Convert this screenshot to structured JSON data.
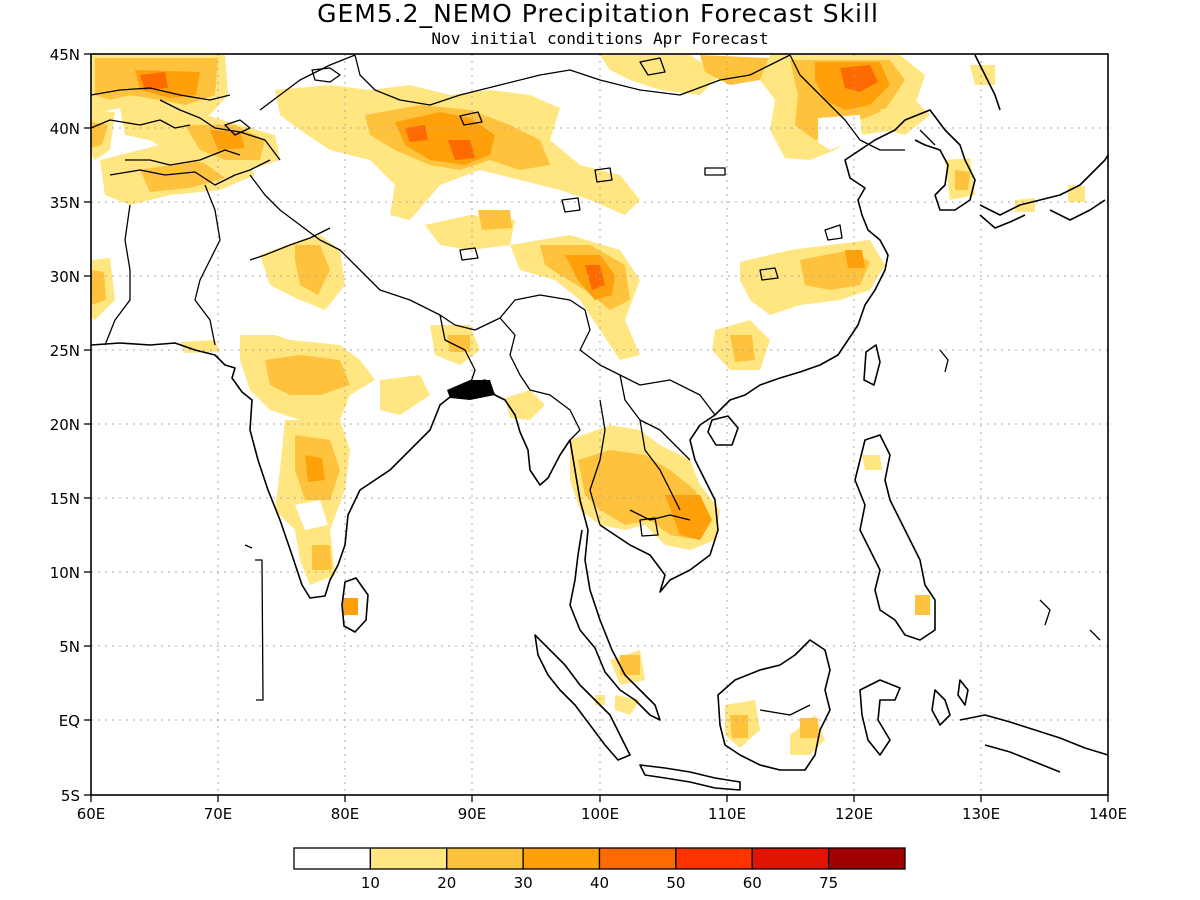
{
  "map": {
    "title": "GEM5.2_NEMO Precipitation Forecast Skill",
    "subtitle": "Nov initial conditions  Apr Forecast",
    "lon_labels": [
      "60E",
      "70E",
      "80E",
      "90E",
      "100E",
      "110E",
      "120E",
      "130E",
      "140E"
    ],
    "lat_labels": [
      "45N",
      "40N",
      "35N",
      "30N",
      "25N",
      "20N",
      "15N",
      "10N",
      "5N",
      "EQ",
      "5S"
    ],
    "lon_range": [
      60,
      140
    ],
    "lat_range": [
      -5,
      45
    ]
  },
  "colorbar": {
    "labels": [
      "10",
      "20",
      "30",
      "40",
      "50",
      "60",
      "75"
    ],
    "colors": [
      "#ffffff",
      "#ffe680",
      "#ffc23c",
      "#ffa00a",
      "#ff6a00",
      "#ff3200",
      "#e01400",
      "#a00000"
    ]
  }
}
